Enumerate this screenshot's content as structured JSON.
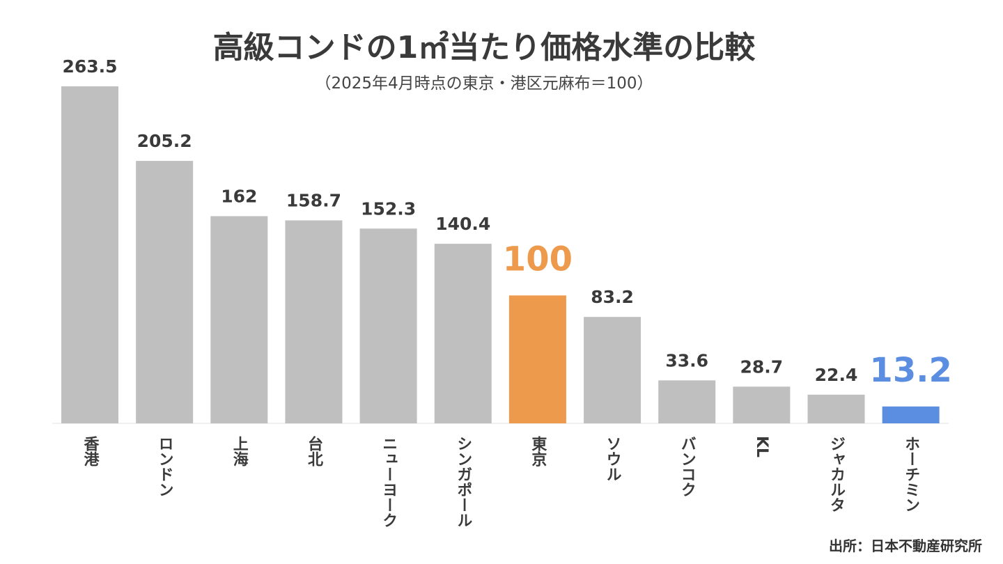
{
  "chart_data": {
    "type": "bar",
    "title": "高級コンドの1㎡当たり価格水準の比較",
    "subtitle": "（2025年4月時点の東京・港区元麻布＝100）",
    "categories": [
      "香港",
      "ロンドン",
      "上海",
      "台北",
      "ニューヨーク",
      "シンガポール",
      "東京",
      "ソウル",
      "バンコク",
      "KL",
      "ジャカルタ",
      "ホーチミン"
    ],
    "values": [
      263.5,
      205.2,
      162,
      158.7,
      152.3,
      140.4,
      100,
      83.2,
      33.6,
      28.7,
      22.4,
      13.2
    ],
    "data_labels": [
      "263.5",
      "205.2",
      "162",
      "158.7",
      "152.3",
      "140.4",
      "100",
      "83.2",
      "33.6",
      "28.7",
      "22.4",
      "13.2"
    ],
    "highlight": {
      "東京": "#ED9A4C",
      "ホーチミン": "#5B8EE0"
    },
    "default_color": "#BFBFBF",
    "ylim": [
      0,
      263.5
    ],
    "grid": false,
    "source": "出所：日本不動産研究所"
  }
}
